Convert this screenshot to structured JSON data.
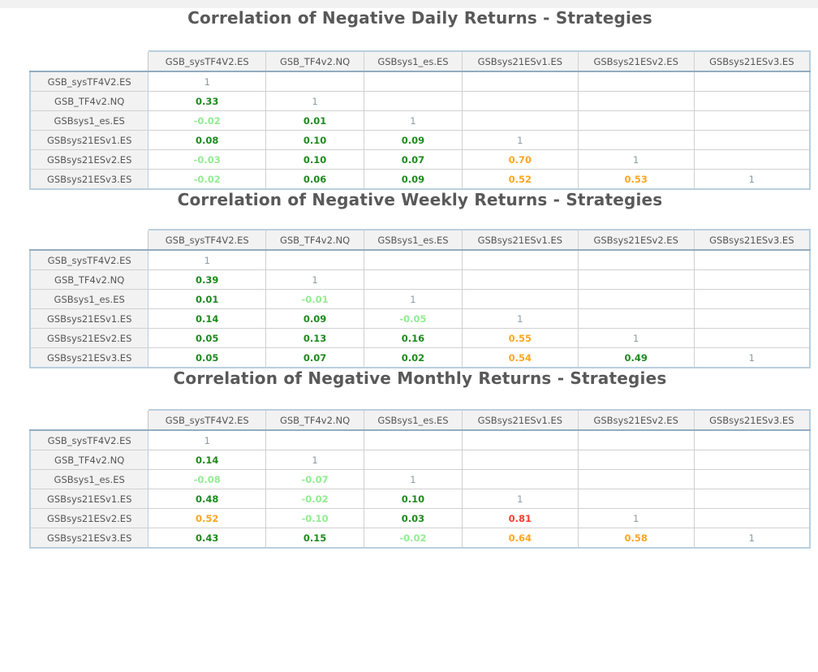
{
  "page": {
    "background": "#ffffff",
    "top_bar_color": "#f1f1f1"
  },
  "colors": {
    "diagonal": "#8d9aa5",
    "negative": "#90EE90",
    "low_positive": "#1e8a1e",
    "medium_positive": "#FFA620",
    "high_positive": "#FF3B30",
    "header_text": "#555555",
    "title_text": "#595959"
  },
  "color_rules": {
    "diagonal_one": "grey",
    "below_0": "lightgreen",
    "0_to_0.5": "green",
    "0.5_to_0.75": "orange",
    "0.75_and_above": "red"
  },
  "columns": [
    "GSB_sysTF4V2.ES",
    "GSB_TF4v2.NQ",
    "GSBsys1_es.ES",
    "GSBsys21ESv1.ES",
    "GSBsys21ESv2.ES",
    "GSBsys21ESv3.ES"
  ],
  "tables": [
    {
      "title": "Correlation of Negative Daily Returns - Strategies",
      "rows": [
        {
          "label": "GSB_sysTF4V2.ES",
          "values": [
            "1"
          ]
        },
        {
          "label": "GSB_TF4v2.NQ",
          "values": [
            "0.33",
            "1"
          ]
        },
        {
          "label": "GSBsys1_es.ES",
          "values": [
            "-0.02",
            "0.01",
            "1"
          ]
        },
        {
          "label": "GSBsys21ESv1.ES",
          "values": [
            "0.08",
            "0.10",
            "0.09",
            "1"
          ]
        },
        {
          "label": "GSBsys21ESv2.ES",
          "values": [
            "-0.03",
            "0.10",
            "0.07",
            "0.70",
            "1"
          ]
        },
        {
          "label": "GSBsys21ESv3.ES",
          "values": [
            "-0.02",
            "0.06",
            "0.09",
            "0.52",
            "0.53",
            "1"
          ]
        }
      ]
    },
    {
      "title": "Correlation of Negative Weekly Returns - Strategies",
      "rows": [
        {
          "label": "GSB_sysTF4V2.ES",
          "values": [
            "1"
          ]
        },
        {
          "label": "GSB_TF4v2.NQ",
          "values": [
            "0.39",
            "1"
          ]
        },
        {
          "label": "GSBsys1_es.ES",
          "values": [
            "0.01",
            "-0.01",
            "1"
          ]
        },
        {
          "label": "GSBsys21ESv1.ES",
          "values": [
            "0.14",
            "0.09",
            "-0.05",
            "1"
          ]
        },
        {
          "label": "GSBsys21ESv2.ES",
          "values": [
            "0.05",
            "0.13",
            "0.16",
            "0.55",
            "1"
          ]
        },
        {
          "label": "GSBsys21ESv3.ES",
          "values": [
            "0.05",
            "0.07",
            "0.02",
            "0.54",
            "0.49",
            "1"
          ]
        }
      ]
    },
    {
      "title": "Correlation of Negative Monthly Returns - Strategies",
      "rows": [
        {
          "label": "GSB_sysTF4V2.ES",
          "values": [
            "1"
          ]
        },
        {
          "label": "GSB_TF4v2.NQ",
          "values": [
            "0.14",
            "1"
          ]
        },
        {
          "label": "GSBsys1_es.ES",
          "values": [
            "-0.08",
            "-0.07",
            "1"
          ]
        },
        {
          "label": "GSBsys21ESv1.ES",
          "values": [
            "0.48",
            "-0.02",
            "0.10",
            "1"
          ]
        },
        {
          "label": "GSBsys21ESv2.ES",
          "values": [
            "0.52",
            "-0.10",
            "0.03",
            "0.81",
            "1"
          ]
        },
        {
          "label": "GSBsys21ESv3.ES",
          "values": [
            "0.43",
            "0.15",
            "-0.02",
            "0.64",
            "0.58",
            "1"
          ]
        }
      ]
    }
  ],
  "chart_data": [
    {
      "type": "table",
      "title": "Correlation of Negative Daily Returns - Strategies",
      "columns": [
        "GSB_sysTF4V2.ES",
        "GSB_TF4v2.NQ",
        "GSBsys1_es.ES",
        "GSBsys21ESv1.ES",
        "GSBsys21ESv2.ES",
        "GSBsys21ESv3.ES"
      ],
      "rows": [
        "GSB_sysTF4V2.ES",
        "GSB_TF4v2.NQ",
        "GSBsys1_es.ES",
        "GSBsys21ESv1.ES",
        "GSBsys21ESv2.ES",
        "GSBsys21ESv3.ES"
      ],
      "matrix": [
        [
          1,
          null,
          null,
          null,
          null,
          null
        ],
        [
          0.33,
          1,
          null,
          null,
          null,
          null
        ],
        [
          -0.02,
          0.01,
          1,
          null,
          null,
          null
        ],
        [
          0.08,
          0.1,
          0.09,
          1,
          null,
          null
        ],
        [
          -0.03,
          0.1,
          0.07,
          0.7,
          1,
          null
        ],
        [
          -0.02,
          0.06,
          0.09,
          0.52,
          0.53,
          1
        ]
      ]
    },
    {
      "type": "table",
      "title": "Correlation of Negative Weekly Returns - Strategies",
      "columns": [
        "GSB_sysTF4V2.ES",
        "GSB_TF4v2.NQ",
        "GSBsys1_es.ES",
        "GSBsys21ESv1.ES",
        "GSBsys21ESv2.ES",
        "GSBsys21ESv3.ES"
      ],
      "rows": [
        "GSB_sysTF4V2.ES",
        "GSB_TF4v2.NQ",
        "GSBsys1_es.ES",
        "GSBsys21ESv1.ES",
        "GSBsys21ESv2.ES",
        "GSBsys21ESv3.ES"
      ],
      "matrix": [
        [
          1,
          null,
          null,
          null,
          null,
          null
        ],
        [
          0.39,
          1,
          null,
          null,
          null,
          null
        ],
        [
          0.01,
          -0.01,
          1,
          null,
          null,
          null
        ],
        [
          0.14,
          0.09,
          -0.05,
          1,
          null,
          null
        ],
        [
          0.05,
          0.13,
          0.16,
          0.55,
          1,
          null
        ],
        [
          0.05,
          0.07,
          0.02,
          0.54,
          0.49,
          1
        ]
      ]
    },
    {
      "type": "table",
      "title": "Correlation of Negative Monthly Returns - Strategies",
      "columns": [
        "GSB_sysTF4V2.ES",
        "GSB_TF4v2.NQ",
        "GSBsys1_es.ES",
        "GSBsys21ESv1.ES",
        "GSBsys21ESv2.ES",
        "GSBsys21ESv3.ES"
      ],
      "rows": [
        "GSB_sysTF4V2.ES",
        "GSB_TF4v2.NQ",
        "GSBsys1_es.ES",
        "GSBsys21ESv1.ES",
        "GSBsys21ESv2.ES",
        "GSBsys21ESv3.ES"
      ],
      "matrix": [
        [
          1,
          null,
          null,
          null,
          null,
          null
        ],
        [
          0.14,
          1,
          null,
          null,
          null,
          null
        ],
        [
          -0.08,
          -0.07,
          1,
          null,
          null,
          null
        ],
        [
          0.48,
          -0.02,
          0.1,
          1,
          null,
          null
        ],
        [
          0.52,
          -0.1,
          0.03,
          0.81,
          1,
          null
        ],
        [
          0.43,
          0.15,
          -0.02,
          0.64,
          0.58,
          1
        ]
      ]
    }
  ]
}
